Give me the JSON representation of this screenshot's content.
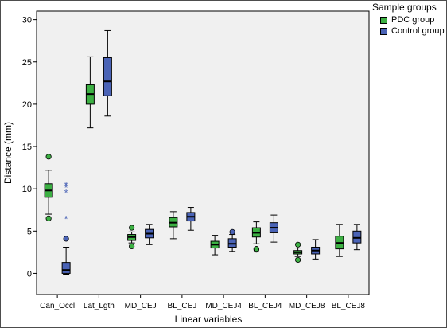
{
  "chart_data": {
    "type": "boxplot",
    "ylabel": "Distance (mm)",
    "xlabel": "Linear variables",
    "ylim": [
      -2.5,
      31
    ],
    "yticks": [
      0,
      5,
      10,
      15,
      20,
      25,
      30
    ],
    "categories": [
      "Can_Occl",
      "Lat_Lgth",
      "MD_CEJ",
      "BL_CEJ",
      "MD_CEJ4",
      "BL_CEJ4",
      "MD_CEJ8",
      "BL_CEJ8"
    ],
    "legend": {
      "title": "Sample groups",
      "position": "top-right"
    },
    "grid": false,
    "series": [
      {
        "name": "PDC group",
        "color": "#3cb043",
        "boxes": [
          {
            "whisker_low": 7.0,
            "q1": 9.0,
            "median": 9.8,
            "q3": 10.6,
            "whisker_high": 12.2,
            "outliers": [
              6.5,
              13.8
            ],
            "extremes": []
          },
          {
            "whisker_low": 17.2,
            "q1": 20.0,
            "median": 21.2,
            "q3": 22.3,
            "whisker_high": 25.6,
            "outliers": [],
            "extremes": []
          },
          {
            "whisker_low": 3.6,
            "q1": 3.9,
            "median": 4.3,
            "q3": 4.6,
            "whisker_high": 4.9,
            "outliers": [
              3.2,
              5.4
            ],
            "extremes": []
          },
          {
            "whisker_low": 4.1,
            "q1": 5.5,
            "median": 6.0,
            "q3": 6.6,
            "whisker_high": 7.3,
            "outliers": [],
            "extremes": []
          },
          {
            "whisker_low": 2.2,
            "q1": 3.0,
            "median": 3.4,
            "q3": 3.8,
            "whisker_high": 4.5,
            "outliers": [],
            "extremes": []
          },
          {
            "whisker_low": 3.5,
            "q1": 4.3,
            "median": 4.8,
            "q3": 5.4,
            "whisker_high": 6.1,
            "outliers": [
              2.8,
              2.9
            ],
            "extremes": []
          },
          {
            "whisker_low": 2.0,
            "q1": 2.3,
            "median": 2.5,
            "q3": 2.7,
            "whisker_high": 3.0,
            "outliers": [
              1.6,
              3.4
            ],
            "extremes": []
          },
          {
            "whisker_low": 2.0,
            "q1": 2.9,
            "median": 3.6,
            "q3": 4.4,
            "whisker_high": 5.8,
            "outliers": [],
            "extremes": []
          }
        ]
      },
      {
        "name": "Control group",
        "color": "#4a63b6",
        "boxes": [
          {
            "whisker_low": -0.1,
            "q1": 0.0,
            "median": 0.4,
            "q3": 1.3,
            "whisker_high": 3.1,
            "outliers": [
              4.1
            ],
            "extremes": [
              6.5,
              9.6,
              10.2,
              10.5
            ]
          },
          {
            "whisker_low": 18.6,
            "q1": 21.0,
            "median": 22.7,
            "q3": 25.5,
            "whisker_high": 28.7,
            "outliers": [],
            "extremes": []
          },
          {
            "whisker_low": 3.4,
            "q1": 4.2,
            "median": 4.7,
            "q3": 5.2,
            "whisker_high": 5.8,
            "outliers": [],
            "extremes": []
          },
          {
            "whisker_low": 5.1,
            "q1": 6.2,
            "median": 6.7,
            "q3": 7.2,
            "whisker_high": 7.8,
            "outliers": [],
            "extremes": []
          },
          {
            "whisker_low": 2.6,
            "q1": 3.1,
            "median": 3.5,
            "q3": 4.1,
            "whisker_high": 4.6,
            "outliers": [
              4.9
            ],
            "extremes": []
          },
          {
            "whisker_low": 3.7,
            "q1": 4.8,
            "median": 5.4,
            "q3": 6.0,
            "whisker_high": 6.9,
            "outliers": [],
            "extremes": []
          },
          {
            "whisker_low": 1.7,
            "q1": 2.3,
            "median": 2.7,
            "q3": 3.1,
            "whisker_high": 4.0,
            "outliers": [],
            "extremes": []
          },
          {
            "whisker_low": 2.8,
            "q1": 3.6,
            "median": 4.2,
            "q3": 5.0,
            "whisker_high": 5.8,
            "outliers": [],
            "extremes": []
          }
        ]
      }
    ]
  }
}
